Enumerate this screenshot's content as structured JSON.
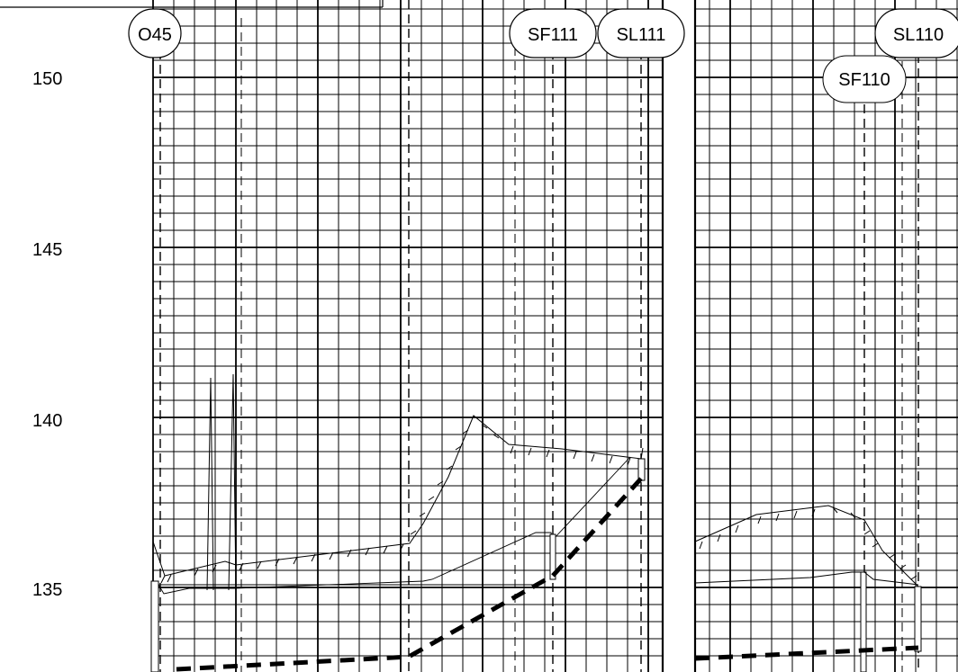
{
  "y_axis": {
    "ticks": [
      {
        "value": 150,
        "label": "150"
      },
      {
        "value": 145,
        "label": "145"
      },
      {
        "value": 140,
        "label": "140"
      },
      {
        "value": 135,
        "label": "135"
      }
    ]
  },
  "markers": [
    {
      "id": "o45",
      "label": "O45"
    },
    {
      "id": "sf111",
      "label": "SF111"
    },
    {
      "id": "sl111",
      "label": "SL111"
    },
    {
      "id": "sl110",
      "label": "SL110"
    },
    {
      "id": "sf110",
      "label": "SF110"
    }
  ]
}
